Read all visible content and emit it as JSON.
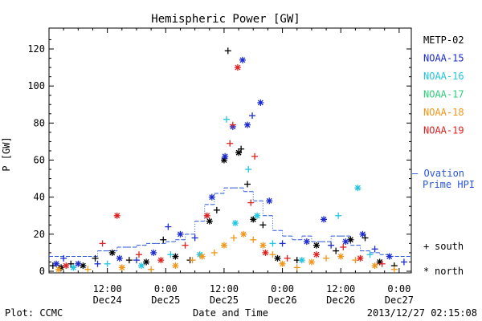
{
  "colors": {
    "METP-02": "#000000",
    "NOAA-15": "#1b2bd0",
    "NOAA-16": "#22c4e0",
    "NOAA-17": "#2bd07a",
    "NOAA-18": "#f0961a",
    "NOAA-19": "#e02020",
    "ovation": "#2a55d8"
  },
  "chart_data": {
    "type": "scatter",
    "title": "Hemispheric Power [GW]",
    "xlabel": "Date and Time",
    "ylabel": "P [GW]",
    "ylim": [
      0,
      130
    ],
    "xlim_hours": [
      0,
      74.5
    ],
    "yticks": [
      "0",
      "20",
      "40",
      "60",
      "80",
      "100",
      "120"
    ],
    "xticks": [
      {
        "time": "12:00",
        "date": "Dec24",
        "h": 12
      },
      {
        "time": "0:00",
        "date": "Dec25",
        "h": 24
      },
      {
        "time": "12:00",
        "date": "Dec25",
        "h": 36
      },
      {
        "time": "0:00",
        "date": "Dec26",
        "h": 48
      },
      {
        "time": "12:00",
        "date": "Dec26",
        "h": 60
      },
      {
        "time": "0:00",
        "date": "Dec27",
        "h": 72
      }
    ],
    "series_legend": [
      "METP-02",
      "NOAA-15",
      "NOAA-16",
      "NOAA-17",
      "NOAA-18",
      "NOAA-19"
    ],
    "symbol_legend": [
      {
        "glyph": "+",
        "label": "south"
      },
      {
        "glyph": "*",
        "label": "north"
      }
    ],
    "ovation_label": [
      "— Ovation",
      "Prime HPI"
    ],
    "ovation": [
      [
        0,
        8
      ],
      [
        8,
        8
      ],
      [
        10,
        11
      ],
      [
        12,
        11
      ],
      [
        14,
        13
      ],
      [
        16,
        13
      ],
      [
        18,
        14
      ],
      [
        20,
        15
      ],
      [
        22,
        15
      ],
      [
        24,
        16
      ],
      [
        26,
        17
      ],
      [
        28,
        20
      ],
      [
        30,
        27
      ],
      [
        32,
        36
      ],
      [
        34,
        42
      ],
      [
        36,
        45
      ],
      [
        38,
        45
      ],
      [
        40,
        43
      ],
      [
        42,
        38
      ],
      [
        44,
        30
      ],
      [
        46,
        22
      ],
      [
        48,
        19
      ],
      [
        50,
        17
      ],
      [
        52,
        19
      ],
      [
        54,
        16
      ],
      [
        56,
        16
      ],
      [
        58,
        19
      ],
      [
        60,
        19
      ],
      [
        62,
        14
      ],
      [
        64,
        11
      ],
      [
        66,
        10
      ],
      [
        68,
        9
      ],
      [
        70,
        8
      ],
      [
        74.5,
        8
      ]
    ],
    "points": [
      {
        "s": "METP-02",
        "m": "+",
        "x": 0.8,
        "y": 3
      },
      {
        "s": "METP-02",
        "m": "*",
        "x": 2.5,
        "y": 2
      },
      {
        "s": "METP-02",
        "m": "+",
        "x": 4.5,
        "y": 4
      },
      {
        "s": "METP-02",
        "m": "*",
        "x": 7,
        "y": 3
      },
      {
        "s": "METP-02",
        "m": "+",
        "x": 9.5,
        "y": 7
      },
      {
        "s": "METP-02",
        "m": "*",
        "x": 13,
        "y": 10
      },
      {
        "s": "METP-02",
        "m": "+",
        "x": 16.5,
        "y": 6
      },
      {
        "s": "METP-02",
        "m": "*",
        "x": 20,
        "y": 5
      },
      {
        "s": "METP-02",
        "m": "+",
        "x": 23.5,
        "y": 17
      },
      {
        "s": "METP-02",
        "m": "*",
        "x": 26,
        "y": 8
      },
      {
        "s": "METP-02",
        "m": "+",
        "x": 29,
        "y": 6
      },
      {
        "s": "METP-02",
        "m": "*",
        "x": 33,
        "y": 27
      },
      {
        "s": "METP-02",
        "m": "+",
        "x": 34.5,
        "y": 33
      },
      {
        "s": "METP-02",
        "m": "*",
        "x": 36,
        "y": 60
      },
      {
        "s": "METP-02",
        "m": "+",
        "x": 36.8,
        "y": 119
      },
      {
        "s": "METP-02",
        "m": "*",
        "x": 39,
        "y": 64
      },
      {
        "s": "METP-02",
        "m": "+",
        "x": 39.5,
        "y": 66
      },
      {
        "s": "METP-02",
        "m": "+",
        "x": 40.8,
        "y": 47
      },
      {
        "s": "METP-02",
        "m": "*",
        "x": 42,
        "y": 28
      },
      {
        "s": "METP-02",
        "m": "+",
        "x": 44,
        "y": 25
      },
      {
        "s": "METP-02",
        "m": "*",
        "x": 47,
        "y": 7
      },
      {
        "s": "METP-02",
        "m": "+",
        "x": 51,
        "y": 6
      },
      {
        "s": "METP-02",
        "m": "*",
        "x": 55,
        "y": 14
      },
      {
        "s": "METP-02",
        "m": "+",
        "x": 59,
        "y": 11
      },
      {
        "s": "METP-02",
        "m": "*",
        "x": 62,
        "y": 17
      },
      {
        "s": "METP-02",
        "m": "+",
        "x": 65,
        "y": 18
      },
      {
        "s": "METP-02",
        "m": "*",
        "x": 68,
        "y": 5
      },
      {
        "s": "METP-02",
        "m": "+",
        "x": 71,
        "y": 3
      },
      {
        "s": "NOAA-15",
        "m": "*",
        "x": 1.5,
        "y": 4
      },
      {
        "s": "NOAA-15",
        "m": "+",
        "x": 3,
        "y": 7
      },
      {
        "s": "NOAA-15",
        "m": "*",
        "x": 6,
        "y": 4
      },
      {
        "s": "NOAA-15",
        "m": "+",
        "x": 10,
        "y": 4
      },
      {
        "s": "NOAA-15",
        "m": "*",
        "x": 14.5,
        "y": 7
      },
      {
        "s": "NOAA-15",
        "m": "+",
        "x": 18,
        "y": 6
      },
      {
        "s": "NOAA-15",
        "m": "*",
        "x": 21.5,
        "y": 10
      },
      {
        "s": "NOAA-15",
        "m": "+",
        "x": 24.5,
        "y": 24
      },
      {
        "s": "NOAA-15",
        "m": "*",
        "x": 27,
        "y": 20
      },
      {
        "s": "NOAA-15",
        "m": "+",
        "x": 30,
        "y": 18
      },
      {
        "s": "NOAA-15",
        "m": "*",
        "x": 33.5,
        "y": 40
      },
      {
        "s": "NOAA-15",
        "m": "*",
        "x": 36.2,
        "y": 62
      },
      {
        "s": "NOAA-15",
        "m": "*",
        "x": 37.8,
        "y": 78
      },
      {
        "s": "NOAA-15",
        "m": "*",
        "x": 39.8,
        "y": 114
      },
      {
        "s": "NOAA-15",
        "m": "*",
        "x": 40.8,
        "y": 79
      },
      {
        "s": "NOAA-15",
        "m": "+",
        "x": 41.8,
        "y": 84
      },
      {
        "s": "NOAA-15",
        "m": "*",
        "x": 43.5,
        "y": 91
      },
      {
        "s": "NOAA-15",
        "m": "*",
        "x": 45.3,
        "y": 38
      },
      {
        "s": "NOAA-15",
        "m": "+",
        "x": 48,
        "y": 15
      },
      {
        "s": "NOAA-15",
        "m": "*",
        "x": 53,
        "y": 16
      },
      {
        "s": "NOAA-15",
        "m": "*",
        "x": 56.5,
        "y": 28
      },
      {
        "s": "NOAA-15",
        "m": "+",
        "x": 58,
        "y": 14
      },
      {
        "s": "NOAA-15",
        "m": "*",
        "x": 61,
        "y": 16
      },
      {
        "s": "NOAA-15",
        "m": "*",
        "x": 64.5,
        "y": 20
      },
      {
        "s": "NOAA-15",
        "m": "+",
        "x": 67,
        "y": 12
      },
      {
        "s": "NOAA-15",
        "m": "*",
        "x": 70,
        "y": 8
      },
      {
        "s": "NOAA-15",
        "m": "+",
        "x": 73,
        "y": 5
      },
      {
        "s": "NOAA-16",
        "m": "*",
        "x": 5,
        "y": 2
      },
      {
        "s": "NOAA-16",
        "m": "+",
        "x": 12,
        "y": 4
      },
      {
        "s": "NOAA-16",
        "m": "*",
        "x": 19,
        "y": 3
      },
      {
        "s": "NOAA-16",
        "m": "+",
        "x": 25,
        "y": 9
      },
      {
        "s": "NOAA-16",
        "m": "*",
        "x": 31,
        "y": 9
      },
      {
        "s": "NOAA-16",
        "m": "+",
        "x": 36.5,
        "y": 82
      },
      {
        "s": "NOAA-16",
        "m": "*",
        "x": 38.3,
        "y": 26
      },
      {
        "s": "NOAA-16",
        "m": "+",
        "x": 41,
        "y": 55
      },
      {
        "s": "NOAA-16",
        "m": "*",
        "x": 42.8,
        "y": 30
      },
      {
        "s": "NOAA-16",
        "m": "+",
        "x": 46,
        "y": 15
      },
      {
        "s": "NOAA-16",
        "m": "*",
        "x": 52,
        "y": 6
      },
      {
        "s": "NOAA-16",
        "m": "+",
        "x": 59.5,
        "y": 30
      },
      {
        "s": "NOAA-16",
        "m": "*",
        "x": 63.5,
        "y": 45
      },
      {
        "s": "NOAA-16",
        "m": "+",
        "x": 66,
        "y": 9
      },
      {
        "s": "NOAA-18",
        "m": "*",
        "x": 2,
        "y": 1
      },
      {
        "s": "NOAA-18",
        "m": "+",
        "x": 8,
        "y": 1
      },
      {
        "s": "NOAA-18",
        "m": "*",
        "x": 15,
        "y": 2
      },
      {
        "s": "NOAA-18",
        "m": "+",
        "x": 21,
        "y": 1
      },
      {
        "s": "NOAA-18",
        "m": "*",
        "x": 26,
        "y": 3
      },
      {
        "s": "NOAA-18",
        "m": "+",
        "x": 29.5,
        "y": 6
      },
      {
        "s": "NOAA-18",
        "m": "*",
        "x": 31.5,
        "y": 8
      },
      {
        "s": "NOAA-18",
        "m": "+",
        "x": 34,
        "y": 10
      },
      {
        "s": "NOAA-18",
        "m": "*",
        "x": 36,
        "y": 14
      },
      {
        "s": "NOAA-18",
        "m": "+",
        "x": 38,
        "y": 18
      },
      {
        "s": "NOAA-18",
        "m": "*",
        "x": 40,
        "y": 20
      },
      {
        "s": "NOAA-18",
        "m": "+",
        "x": 42,
        "y": 17
      },
      {
        "s": "NOAA-18",
        "m": "*",
        "x": 44,
        "y": 14
      },
      {
        "s": "NOAA-18",
        "m": "+",
        "x": 46,
        "y": 9
      },
      {
        "s": "NOAA-18",
        "m": "*",
        "x": 48,
        "y": 4
      },
      {
        "s": "NOAA-18",
        "m": "+",
        "x": 51,
        "y": 2
      },
      {
        "s": "NOAA-18",
        "m": "*",
        "x": 54,
        "y": 5
      },
      {
        "s": "NOAA-18",
        "m": "+",
        "x": 57,
        "y": 7
      },
      {
        "s": "NOAA-18",
        "m": "*",
        "x": 60,
        "y": 8
      },
      {
        "s": "NOAA-18",
        "m": "+",
        "x": 63,
        "y": 6
      },
      {
        "s": "NOAA-18",
        "m": "*",
        "x": 67,
        "y": 3
      },
      {
        "s": "NOAA-18",
        "m": "+",
        "x": 71,
        "y": 1
      },
      {
        "s": "NOAA-19",
        "m": "*",
        "x": 3.5,
        "y": 3
      },
      {
        "s": "NOAA-19",
        "m": "+",
        "x": 11,
        "y": 15
      },
      {
        "s": "NOAA-19",
        "m": "*",
        "x": 14,
        "y": 30
      },
      {
        "s": "NOAA-19",
        "m": "+",
        "x": 18.5,
        "y": 9
      },
      {
        "s": "NOAA-19",
        "m": "*",
        "x": 23,
        "y": 6
      },
      {
        "s": "NOAA-19",
        "m": "+",
        "x": 28,
        "y": 14
      },
      {
        "s": "NOAA-19",
        "m": "*",
        "x": 32.5,
        "y": 30
      },
      {
        "s": "NOAA-19",
        "m": "+",
        "x": 37.2,
        "y": 69
      },
      {
        "s": "NOAA-19",
        "m": "+",
        "x": 37.8,
        "y": 79
      },
      {
        "s": "NOAA-19",
        "m": "*",
        "x": 38.8,
        "y": 110
      },
      {
        "s": "NOAA-19",
        "m": "+",
        "x": 41.5,
        "y": 37
      },
      {
        "s": "NOAA-19",
        "m": "+",
        "x": 42.3,
        "y": 62
      },
      {
        "s": "NOAA-19",
        "m": "*",
        "x": 44.5,
        "y": 10
      },
      {
        "s": "NOAA-19",
        "m": "+",
        "x": 49,
        "y": 7
      },
      {
        "s": "NOAA-19",
        "m": "*",
        "x": 55,
        "y": 9
      },
      {
        "s": "NOAA-19",
        "m": "+",
        "x": 60.5,
        "y": 13
      },
      {
        "s": "NOAA-19",
        "m": "*",
        "x": 64,
        "y": 7
      },
      {
        "s": "NOAA-19",
        "m": "+",
        "x": 68.5,
        "y": 4
      }
    ]
  },
  "footer": {
    "left": "Plot: CCMC",
    "right": "2013/12/27 02:15:08"
  }
}
